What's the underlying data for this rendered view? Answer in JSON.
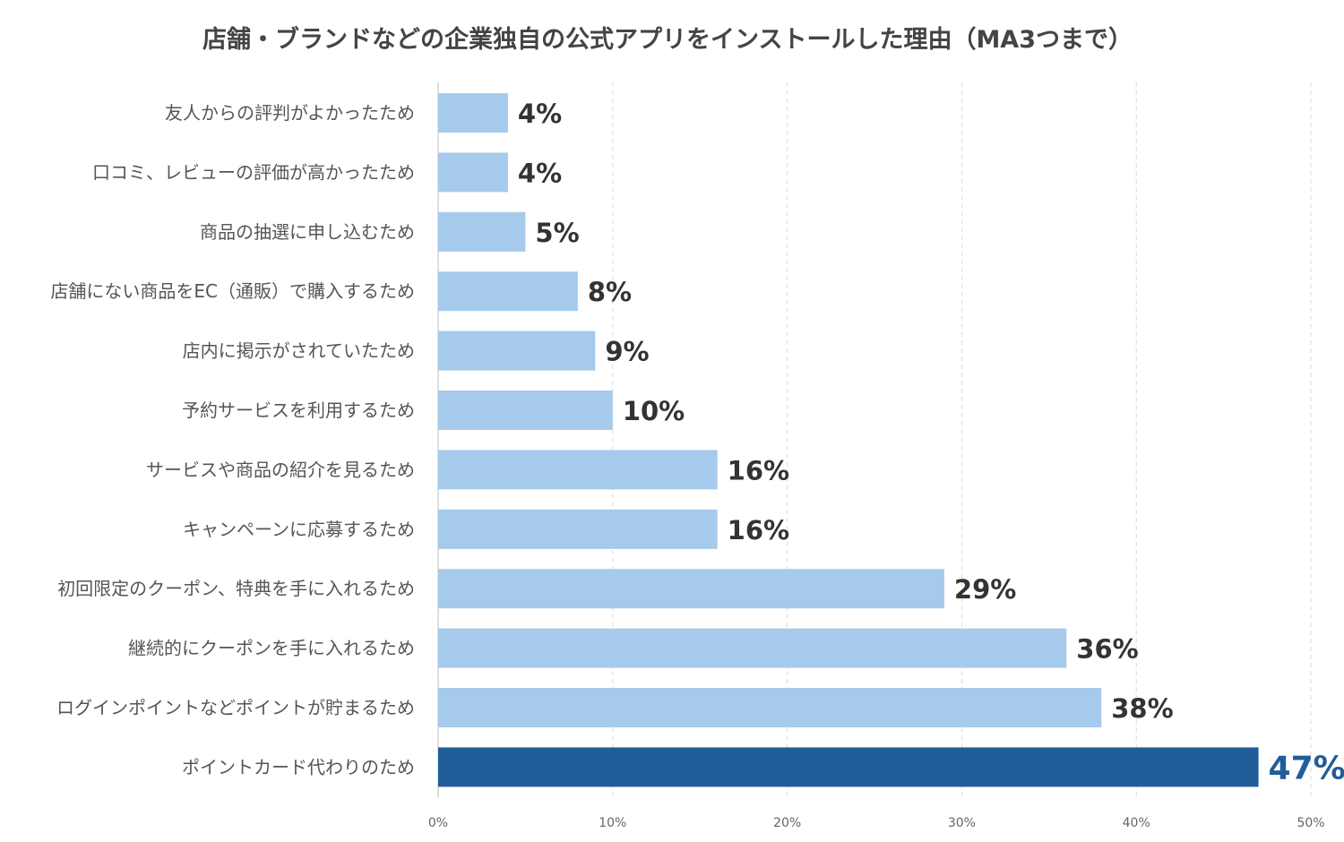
{
  "chart_data": {
    "type": "bar",
    "orientation": "horizontal",
    "title": "店舗・ブランドなどの企業独自の公式アプリをインストールした理由（MA3つまで）",
    "categories": [
      "友人からの評判がよかったため",
      "口コミ、レビューの評価が高かったため",
      "商品の抽選に申し込むため",
      "店舗にない商品をEC（通販）で購入するため",
      "店内に掲示がされていたため",
      "予約サービスを利用するため",
      "サービスや商品の紹介を見るため",
      "キャンペーンに応募するため",
      "初回限定のクーポン、特典を手に入れるため",
      "継続的にクーポンを手に入れるため",
      "ログインポイントなどポイントが貯まるため",
      "ポイントカード代わりのため"
    ],
    "values": [
      4,
      4,
      5,
      8,
      9,
      10,
      16,
      16,
      29,
      36,
      38,
      47
    ],
    "value_labels": [
      "4%",
      "4%",
      "5%",
      "8%",
      "9%",
      "10%",
      "16%",
      "16%",
      "29%",
      "36%",
      "38%",
      "47%"
    ],
    "highlight_index": 11,
    "xlim": [
      0,
      50
    ],
    "xticks": [
      0,
      10,
      20,
      30,
      40,
      50
    ],
    "xtick_labels": [
      "0%",
      "10%",
      "20%",
      "30%",
      "40%",
      "50%"
    ],
    "grid": "vertical dashed",
    "colors": {
      "bar": "#a6caeb",
      "highlight": "#215d98",
      "grid": "#d9d9d9",
      "axis": "#bfbfbf"
    }
  }
}
